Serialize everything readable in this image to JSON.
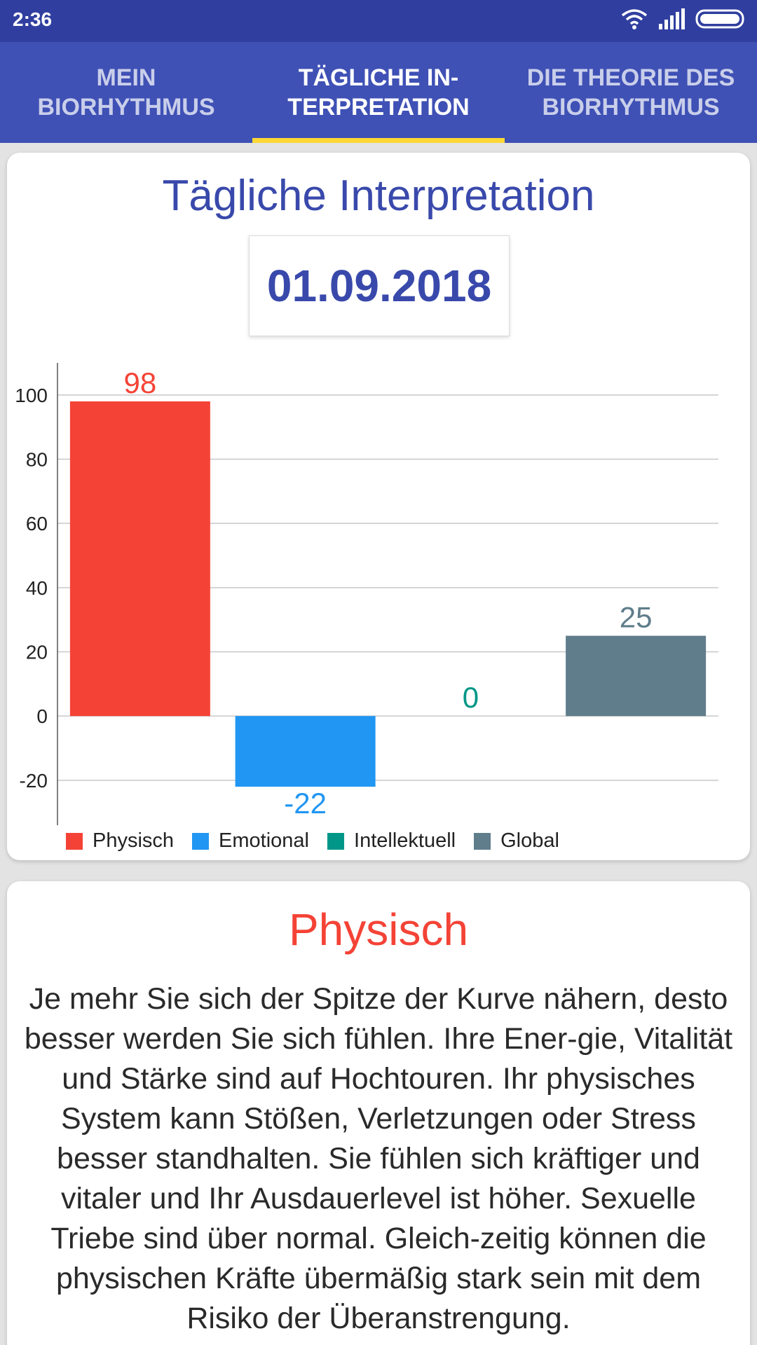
{
  "status_bar": {
    "time": "2:36"
  },
  "tabs": [
    {
      "label": "MEIN\nBIORHYTHMUS",
      "active": false
    },
    {
      "label": "TÄGLICHE IN-\nTERPRETATION",
      "active": true
    },
    {
      "label": "DIE THEORIE DES\nBIORHYTHMUS",
      "active": false
    }
  ],
  "card": {
    "title": "Tägliche Interpretation",
    "date": "01.09.2018"
  },
  "chart_data": {
    "type": "bar",
    "categories": [
      "Physisch",
      "Emotional",
      "Intellektuell",
      "Global"
    ],
    "values": [
      98,
      -22,
      0,
      25
    ],
    "colors": [
      "#f44336",
      "#2196f3",
      "#009688",
      "#607d8b"
    ],
    "yticks": [
      100,
      80,
      60,
      40,
      20,
      0,
      -20
    ],
    "ylim": [
      -34,
      110
    ],
    "grid": true,
    "legend": "bottom-left"
  },
  "detail": {
    "heading": "Physisch",
    "body": "Je mehr Sie sich der Spitze der Kurve nähern, desto besser werden Sie sich fühlen. Ihre Ener-gie, Vitalität und Stärke sind auf Hochtouren. Ihr physisches System kann Stößen, Verletzungen oder Stress besser standhalten. Sie fühlen sich kräftiger und vitaler und Ihr Ausdauerlevel ist höher. Sexuelle Triebe sind über normal. Gleich-zeitig können die physischen Kräfte übermäßig stark sein mit dem Risiko der Überanstrengung."
  }
}
